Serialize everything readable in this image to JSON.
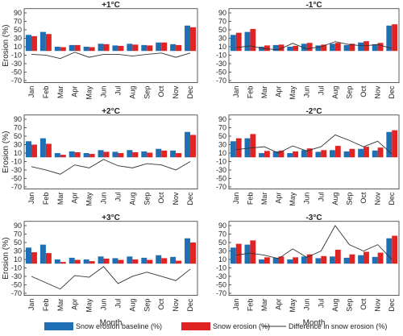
{
  "chart_data": [
    {
      "type": "bar",
      "title": "+1°C",
      "y_label": "Erosion (%)",
      "categories": [
        "Jan",
        "Feb",
        "Mar",
        "Apr",
        "May",
        "Jun",
        "Jul",
        "Aug",
        "Sep",
        "Oct",
        "Nov",
        "Dec"
      ],
      "ylim": [
        -75,
        100
      ],
      "yticks": [
        -70,
        -50,
        -30,
        -10,
        10,
        30,
        50,
        70,
        90
      ],
      "series": [
        {
          "name": "Snow erosion baseline (%)",
          "type": "bar",
          "color": "#1f6fb4",
          "values": [
            38,
            45,
            10,
            14,
            10,
            17,
            13,
            17,
            14,
            20,
            16,
            60
          ]
        },
        {
          "name": "Snow erosion (%)",
          "type": "bar",
          "color": "#e02424",
          "values": [
            35,
            40,
            9,
            14,
            9,
            16,
            12,
            15,
            13,
            20,
            14,
            56
          ]
        },
        {
          "name": "Difference in snow erosion (%)",
          "type": "line",
          "color": "#333333",
          "values": [
            -8,
            -10,
            -18,
            -3,
            -15,
            -8,
            -8,
            -12,
            -8,
            -5,
            -15,
            -5
          ]
        }
      ]
    },
    {
      "type": "bar",
      "title": "-1°C",
      "categories": [
        "Jan",
        "Feb",
        "Mar",
        "Apr",
        "May",
        "Jun",
        "Jul",
        "Aug",
        "Sep",
        "Oct",
        "Nov",
        "Dec"
      ],
      "ylim": [
        -75,
        100
      ],
      "yticks": [
        -70,
        -50,
        -30,
        -10,
        10,
        30,
        50,
        70,
        90
      ],
      "series": [
        {
          "type": "bar",
          "color": "#1f6fb4",
          "values": [
            38,
            45,
            10,
            14,
            10,
            17,
            13,
            17,
            14,
            20,
            16,
            60
          ]
        },
        {
          "type": "bar",
          "color": "#e02424",
          "values": [
            43,
            52,
            13,
            15,
            12,
            19,
            15,
            19,
            17,
            23,
            19,
            63
          ]
        },
        {
          "type": "line",
          "color": "#333333",
          "values": [
            8,
            12,
            5,
            3,
            18,
            5,
            10,
            22,
            15,
            12,
            15,
            6
          ]
        }
      ]
    },
    {
      "type": "bar",
      "title": "+2°C",
      "y_label": "Erosion (%)",
      "categories": [
        "Jan",
        "Feb",
        "Mar",
        "Apr",
        "May",
        "Jun",
        "Jul",
        "Aug",
        "Sep",
        "Oct",
        "Nov",
        "Dec"
      ],
      "ylim": [
        -75,
        100
      ],
      "yticks": [
        -70,
        -50,
        -30,
        -10,
        10,
        30,
        50,
        70,
        90
      ],
      "series": [
        {
          "type": "bar",
          "color": "#1f6fb4",
          "values": [
            38,
            45,
            10,
            14,
            10,
            17,
            13,
            17,
            14,
            20,
            16,
            60
          ]
        },
        {
          "type": "bar",
          "color": "#e02424",
          "values": [
            30,
            32,
            6,
            12,
            8,
            13,
            10,
            12,
            11,
            16,
            10,
            53
          ]
        },
        {
          "type": "line",
          "color": "#333333",
          "values": [
            -22,
            -30,
            -40,
            -18,
            -25,
            -5,
            -20,
            -25,
            -15,
            -18,
            -30,
            -10
          ]
        }
      ]
    },
    {
      "type": "bar",
      "title": "-2°C",
      "categories": [
        "Jan",
        "Feb",
        "Mar",
        "Apr",
        "May",
        "Jun",
        "Jul",
        "Aug",
        "Sep",
        "Oct",
        "Nov",
        "Dec"
      ],
      "ylim": [
        -75,
        100
      ],
      "yticks": [
        -70,
        -50,
        -30,
        -10,
        10,
        30,
        50,
        70,
        90
      ],
      "series": [
        {
          "type": "bar",
          "color": "#1f6fb4",
          "values": [
            38,
            45,
            10,
            14,
            10,
            17,
            13,
            17,
            14,
            20,
            16,
            60
          ]
        },
        {
          "type": "bar",
          "color": "#e02424",
          "values": [
            45,
            55,
            15,
            16,
            14,
            21,
            17,
            27,
            20,
            25,
            23,
            64
          ]
        },
        {
          "type": "line",
          "color": "#333333",
          "values": [
            18,
            22,
            25,
            10,
            27,
            15,
            25,
            53,
            40,
            25,
            38,
            8
          ]
        }
      ]
    },
    {
      "type": "bar",
      "title": "+3°C",
      "y_label": "Erosion (%)",
      "x_label": "Month",
      "categories": [
        "Jan",
        "Feb",
        "Mar",
        "Apr",
        "May",
        "Jun",
        "Jul",
        "Aug",
        "Sep",
        "Oct",
        "Nov",
        "Dec"
      ],
      "ylim": [
        -75,
        100
      ],
      "yticks": [
        -70,
        -50,
        -30,
        -10,
        10,
        30,
        50,
        70,
        90
      ],
      "series": [
        {
          "type": "bar",
          "color": "#1f6fb4",
          "values": [
            38,
            45,
            10,
            14,
            10,
            17,
            13,
            17,
            14,
            20,
            16,
            60
          ]
        },
        {
          "type": "bar",
          "color": "#e02424",
          "values": [
            27,
            25,
            4,
            9,
            6,
            12,
            9,
            10,
            9,
            13,
            7,
            50
          ]
        },
        {
          "type": "line",
          "color": "#333333",
          "values": [
            -30,
            -45,
            -60,
            -28,
            -32,
            -7,
            -47,
            -30,
            -20,
            -30,
            -40,
            -13
          ]
        }
      ]
    },
    {
      "type": "bar",
      "title": "-3°C",
      "x_label": "Month",
      "categories": [
        "Jan",
        "Feb",
        "Mar",
        "Apr",
        "May",
        "Jun",
        "Jul",
        "Aug",
        "Sep",
        "Oct",
        "Nov",
        "Dec"
      ],
      "ylim": [
        -75,
        100
      ],
      "yticks": [
        -70,
        -50,
        -30,
        -10,
        10,
        30,
        50,
        70,
        90
      ],
      "series": [
        {
          "type": "bar",
          "color": "#1f6fb4",
          "values": [
            38,
            45,
            10,
            14,
            10,
            17,
            13,
            17,
            14,
            20,
            16,
            60
          ]
        },
        {
          "type": "bar",
          "color": "#e02424",
          "values": [
            47,
            55,
            15,
            17,
            15,
            22,
            18,
            33,
            22,
            28,
            26,
            66
          ]
        },
        {
          "type": "line",
          "color": "#333333",
          "values": [
            20,
            25,
            20,
            12,
            35,
            15,
            30,
            90,
            45,
            30,
            45,
            10
          ]
        }
      ]
    }
  ]
}
